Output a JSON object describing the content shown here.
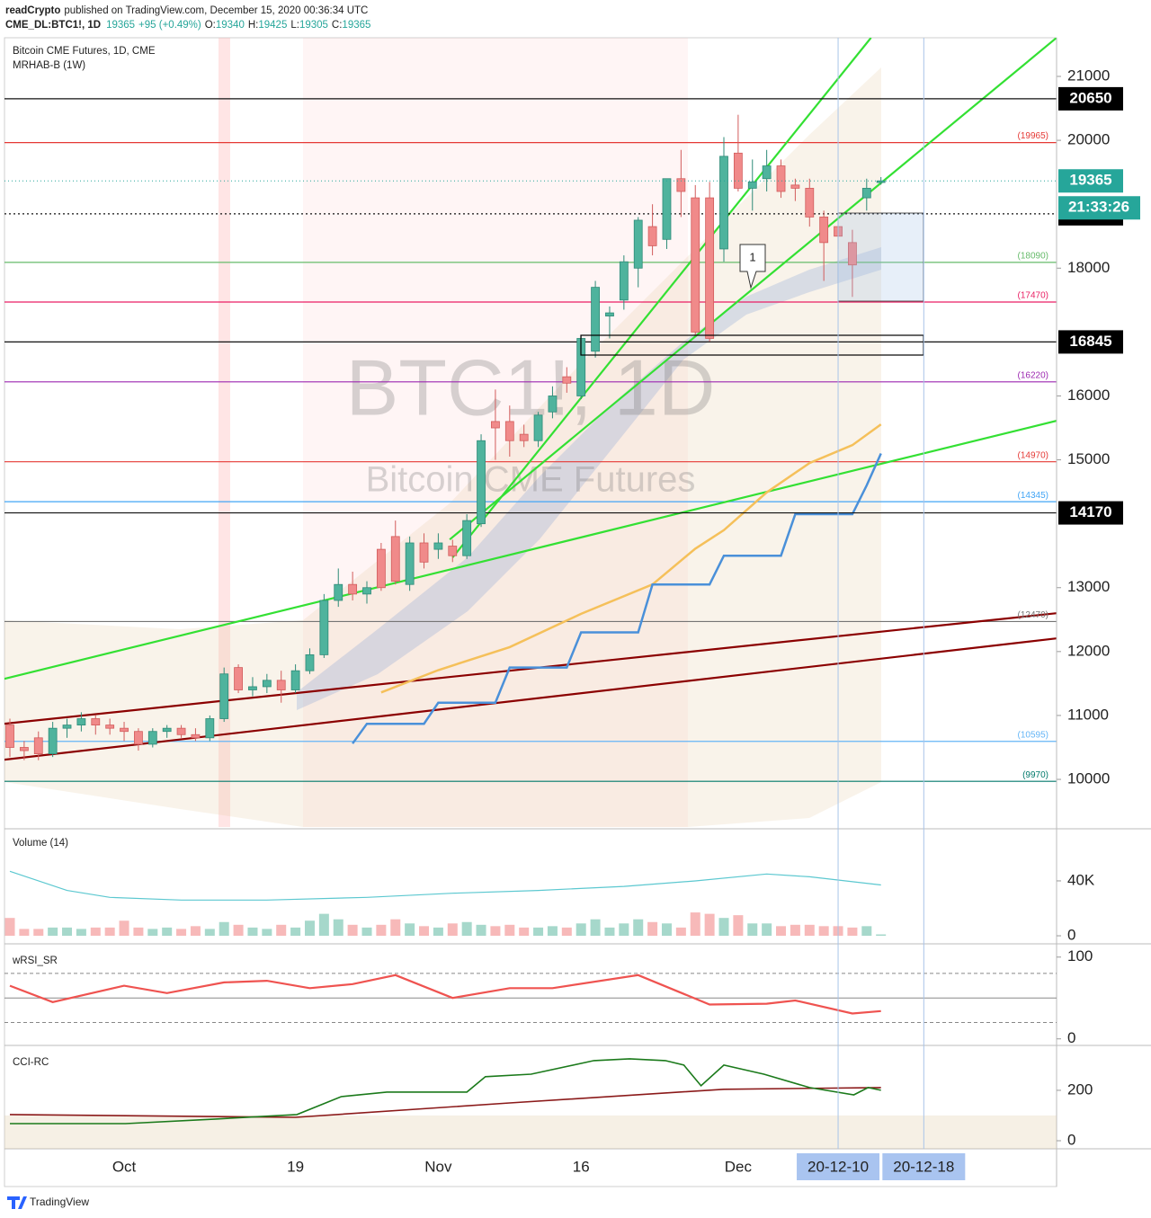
{
  "header": {
    "publisher": "readCrypto",
    "published": "published on TradingView.com, December 15, 2020 00:36:34 UTC",
    "symbol": "CME_DL:BTC1!, 1D",
    "price": "19365",
    "change": "+95 (+0.49%)",
    "ohlc": [
      {
        "label": "O:",
        "value": "19340"
      },
      {
        "label": "H:",
        "value": "19425"
      },
      {
        "label": "L:",
        "value": "19305"
      },
      {
        "label": "C:",
        "value": "19365"
      }
    ]
  },
  "legend": {
    "instrument": "Bitcoin CME Futures, 1D, CME",
    "indicator": "MRHAB-B (1W)"
  },
  "watermark": {
    "symbol": "BTC1!, 1D",
    "name": "Bitcoin CME Futures"
  },
  "chart_data": {
    "type": "candlestick",
    "categories": [
      null,
      null,
      null,
      null,
      null,
      null,
      null,
      null,
      "Oct",
      null,
      null,
      null,
      null,
      null,
      null,
      null,
      null,
      null,
      null,
      null,
      "19",
      null,
      null,
      null,
      null,
      null,
      null,
      null,
      null,
      null,
      "Nov",
      null,
      null,
      null,
      null,
      null,
      null,
      null,
      null,
      null,
      "16",
      null,
      null,
      null,
      null,
      null,
      null,
      null,
      null,
      null,
      null,
      "Dec",
      null,
      null,
      null,
      null,
      null,
      null,
      "20-12-10",
      null,
      null,
      null,
      null,
      null,
      "20-12-18",
      null,
      null,
      null,
      null,
      null,
      null,
      null,
      null,
      null
    ],
    "marked": [
      58,
      64
    ],
    "ohlc": {
      "open": [
        10850,
        10500,
        10650,
        10400,
        10800,
        10850,
        10950,
        10850,
        10800,
        10750,
        10550,
        10750,
        10800,
        10700,
        10650,
        10950,
        11750,
        11400,
        11450,
        11550,
        11400,
        11700,
        11950,
        12800,
        13050,
        12900,
        13600,
        13800,
        13050,
        13700,
        13600,
        13650,
        13500,
        14000,
        15600,
        15600,
        15400,
        15300,
        15750,
        16300,
        16000,
        16700,
        17250,
        17500,
        18000,
        18650,
        18450,
        19400,
        19100,
        19100,
        18300,
        19800,
        19250,
        19400,
        19600,
        19300,
        19250,
        18800,
        18650,
        18400,
        19100,
        19340,
        null,
        null,
        null,
        null,
        null,
        null,
        null,
        null,
        null,
        null,
        null,
        null
      ],
      "high": [
        10950,
        10600,
        10750,
        10900,
        10950,
        11050,
        11000,
        10950,
        10900,
        10800,
        10800,
        10850,
        10850,
        10800,
        11000,
        11750,
        11800,
        11600,
        11650,
        11700,
        11800,
        12050,
        12900,
        13300,
        13250,
        13100,
        13700,
        14050,
        13800,
        13850,
        13850,
        13750,
        14150,
        15400,
        16100,
        15850,
        15550,
        15750,
        16150,
        16450,
        16950,
        17800,
        17400,
        18200,
        18800,
        19000,
        19400,
        19850,
        19300,
        19350,
        20050,
        20400,
        19700,
        19850,
        19700,
        19400,
        19400,
        18900,
        18800,
        18600,
        19400,
        19425,
        null,
        null,
        null,
        null,
        null,
        null,
        null,
        null,
        null,
        null,
        null,
        null
      ],
      "low": [
        10350,
        10300,
        10300,
        10350,
        10650,
        10750,
        10700,
        10700,
        10600,
        10450,
        10500,
        10650,
        10650,
        10600,
        10600,
        10900,
        11350,
        11300,
        11350,
        11200,
        11350,
        11650,
        11900,
        12700,
        12800,
        12750,
        12950,
        13050,
        12950,
        13300,
        13450,
        13400,
        13450,
        13950,
        15000,
        15050,
        15200,
        15200,
        15650,
        16050,
        15950,
        16600,
        16900,
        17350,
        17700,
        18200,
        18300,
        18800,
        16950,
        16850,
        18100,
        19200,
        18900,
        19200,
        19100,
        19050,
        18650,
        17800,
        18300,
        17550,
        18900,
        19305,
        null,
        null,
        null,
        null,
        null,
        null,
        null,
        null,
        null,
        null,
        null,
        null
      ],
      "close": [
        10500,
        10450,
        10400,
        10800,
        10850,
        10950,
        10850,
        10800,
        10750,
        10550,
        10750,
        10800,
        10700,
        10650,
        10950,
        11650,
        11400,
        11450,
        11550,
        11400,
        11700,
        11950,
        12800,
        13050,
        12900,
        13000,
        13000,
        13100,
        13700,
        13400,
        13700,
        13500,
        14050,
        15300,
        15500,
        15300,
        15300,
        15700,
        16000,
        16200,
        16900,
        17700,
        17300,
        18100,
        18750,
        18350,
        19400,
        19200,
        17000,
        16900,
        19750,
        19250,
        19350,
        19600,
        19200,
        19250,
        18800,
        18400,
        18500,
        18050,
        19250,
        19365,
        null,
        null,
        null,
        null,
        null,
        null,
        null,
        null,
        null,
        null,
        null,
        null
      ]
    },
    "up_color": "#4fb39d",
    "down_color": "#f08a8a",
    "ylim": [
      9255,
      21605
    ],
    "yticks": [
      10000,
      11000,
      12000,
      13000,
      15000,
      16000,
      18000,
      20000,
      21000
    ],
    "levels": [
      {
        "value": 19965,
        "label": "(19965)",
        "color": "#e53935"
      },
      {
        "value": 18090,
        "label": "(18090)",
        "color": "#66bb6a"
      },
      {
        "value": 17470,
        "label": "(17470)",
        "color": "#e91e63"
      },
      {
        "value": 16220,
        "label": "(16220)",
        "color": "#9c27b0"
      },
      {
        "value": 14970,
        "label": "(14970)",
        "color": "#e53935"
      },
      {
        "value": 14345,
        "label": "(14345)",
        "color": "#42a5f5"
      },
      {
        "value": 12470,
        "label": "(12470)",
        "color": "#757575"
      },
      {
        "value": 10595,
        "label": "(10595)",
        "color": "#64b5f6"
      },
      {
        "value": 9970,
        "label": "(9970)",
        "color": "#00796b"
      }
    ],
    "key_levels": [
      {
        "value": 20650,
        "dotted": false
      },
      {
        "value": 18850,
        "dotted": true
      },
      {
        "value": 16845,
        "dotted": false
      },
      {
        "value": 14170,
        "dotted": false
      }
    ],
    "last_price": 19365,
    "countdown": "21:33:26",
    "last_color": "#26a69a",
    "trendlines": [
      {
        "x": [
          -0.4,
          73.3
        ],
        "values": [
          11573,
          15611
        ],
        "color": "#33e033"
      },
      {
        "x": [
          30.8,
          73.3
        ],
        "values": [
          13754,
          21605
        ],
        "color": "#33e033"
      },
      {
        "x": [
          31,
          60.3
        ],
        "values": [
          13472,
          21605
        ],
        "color": "#33e033"
      },
      {
        "x": [
          -0.4,
          73.3
        ],
        "values": [
          10870,
          12600
        ],
        "color": "#8b0000"
      },
      {
        "x": [
          -0.4,
          73.3
        ],
        "values": [
          10307,
          12206
        ],
        "color": "#8b0000"
      }
    ],
    "lines": [
      {
        "x": [
          26,
          30,
          35,
          40,
          45,
          48,
          50,
          53,
          56,
          59,
          61
        ],
        "values": [
          11360,
          11710,
          12070,
          12590,
          13050,
          13610,
          13900,
          14490,
          14950,
          15230,
          15555
        ],
        "color": "#f5c05a"
      },
      {
        "x": [
          24,
          25,
          29,
          30,
          34,
          35,
          39,
          40,
          44,
          45,
          49,
          50,
          54,
          55,
          59,
          60,
          61
        ],
        "values": [
          10560,
          10870,
          10870,
          11200,
          11200,
          11750,
          11750,
          12300,
          12300,
          13050,
          13050,
          13500,
          13500,
          14150,
          14150,
          14600,
          15100
        ],
        "color": "#4a90d9"
      }
    ],
    "volume": {
      "title": "Volume (14)",
      "values": [
        13000,
        5000,
        5000,
        6000,
        6000,
        5000,
        6000,
        6000,
        11000,
        6000,
        5000,
        6000,
        5000,
        7000,
        5000,
        10000,
        8000,
        6000,
        5000,
        8000,
        6000,
        11000,
        16000,
        12000,
        8000,
        6000,
        8000,
        12000,
        9000,
        7000,
        6000,
        9000,
        10000,
        8000,
        7000,
        8000,
        6000,
        6000,
        7000,
        6000,
        9000,
        12000,
        6000,
        9000,
        12000,
        10000,
        9000,
        6000,
        17000,
        16000,
        13000,
        15000,
        9000,
        9000,
        7000,
        8000,
        8000,
        7000,
        7000,
        6000,
        7000,
        1000,
        null,
        null,
        null,
        null,
        null,
        null,
        null,
        null,
        null,
        null,
        null,
        null
      ],
      "up_color": "#a6d8cb",
      "down_color": "#f7b9b9",
      "ylim": [
        -2600,
        76000
      ],
      "yticks": [
        {
          "value": 40000,
          "label": "40K"
        },
        0
      ],
      "ma": {
        "x": [
          0,
          4,
          7,
          12,
          18,
          25,
          31,
          37,
          43,
          48,
          53,
          56,
          61
        ],
        "values": [
          47000,
          33000,
          28000,
          26000,
          26000,
          28000,
          31000,
          33000,
          36000,
          40000,
          45000,
          43000,
          37000
        ],
        "color": "#5cc8d0"
      }
    },
    "rsi": {
      "title": "wRSI_SR",
      "ylim": [
        -8,
        114
      ],
      "yticks": [
        100,
        0
      ],
      "levels": [
        80,
        50,
        20
      ],
      "x": [
        0,
        3,
        8,
        11,
        15,
        18,
        21,
        24,
        27,
        31,
        35,
        38,
        44,
        49,
        53,
        55,
        59,
        61
      ],
      "values": [
        65,
        45,
        65,
        56,
        69,
        71,
        62,
        67,
        78,
        50,
        62,
        62,
        78,
        42,
        43,
        47,
        31,
        34
      ],
      "color": "#ef5350"
    },
    "cci": {
      "title": "CCI-RC",
      "ylim": [
        -32,
        371
      ],
      "yticks": [
        200,
        0
      ],
      "band": [
        -100,
        100
      ],
      "line": {
        "x": [
          0,
          8.1,
          14.4,
          20.1,
          23.2,
          26.4,
          32,
          33.3,
          36.5,
          40.9,
          43.4,
          45.9,
          47.2,
          48.4,
          50,
          52.8,
          56,
          59.1,
          60.1,
          61
        ],
        "values": [
          68,
          68,
          86,
          104,
          175,
          193,
          193,
          254,
          264,
          318,
          325,
          318,
          300,
          218,
          300,
          264,
          211,
          182,
          211,
          200
        ],
        "color": "#1b7a1b"
      },
      "signal": {
        "x": [
          0,
          20,
          35,
          50,
          61
        ],
        "values": [
          104,
          93,
          150,
          204,
          211
        ],
        "color": "#8b1a1a"
      }
    }
  },
  "footer": {
    "brand": "TradingView"
  }
}
